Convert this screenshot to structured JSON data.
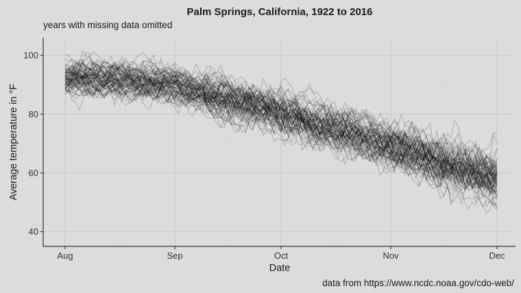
{
  "chart_data": {
    "type": "line",
    "title": "Palm Springs, California, 1922 to 2016",
    "subtitle": "years with missing data omitted",
    "caption": "data from https://www.ncdc.noaa.gov/cdo-web/",
    "xlabel": "Date",
    "ylabel": "Average temperature in °F",
    "x_ticks": [
      "Aug",
      "Sep",
      "Oct",
      "Nov",
      "Dec"
    ],
    "x_range": [
      "Aug 1",
      "Dec 1"
    ],
    "y_ticks": [
      40,
      60,
      80,
      100
    ],
    "ylim": [
      35,
      106
    ],
    "grid": true,
    "series_count": 80,
    "trend": {
      "x": [
        "Aug 1",
        "Aug 15",
        "Sep 1",
        "Sep 15",
        "Oct 1",
        "Oct 15",
        "Nov 1",
        "Nov 15",
        "Dec 1"
      ],
      "y": [
        92,
        91.5,
        89,
        85,
        80,
        75,
        69,
        63,
        58
      ]
    },
    "colors": {
      "background": "#dcdcdc",
      "line": "#000000"
    }
  }
}
